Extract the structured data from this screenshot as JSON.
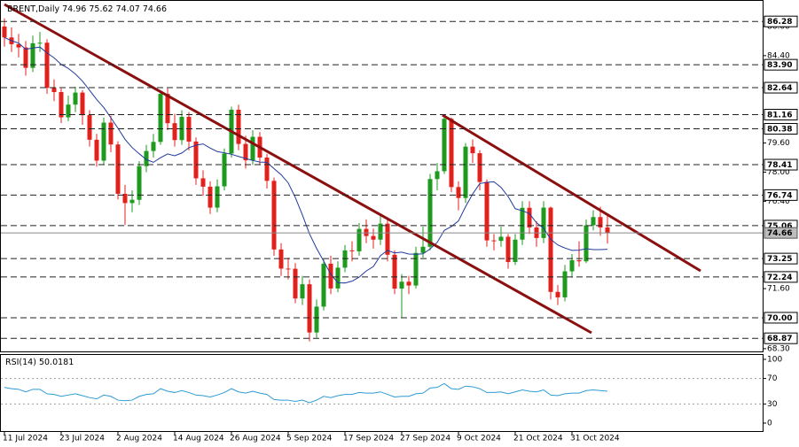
{
  "chart_data": [
    {
      "type": "candlestick",
      "title": "BRENT,Daily",
      "categories": [
        "11 Jul 2024",
        null,
        null,
        null,
        null,
        null,
        null,
        null,
        "23 Jul 2024",
        null,
        null,
        null,
        null,
        null,
        null,
        null,
        "2 Aug 2024",
        null,
        null,
        null,
        null,
        null,
        null,
        null,
        "14 Aug 2024",
        null,
        null,
        null,
        null,
        null,
        null,
        null,
        "26 Aug 2024",
        null,
        null,
        null,
        null,
        null,
        null,
        null,
        "5 Sep 2024",
        null,
        null,
        null,
        null,
        null,
        null,
        null,
        "17 Sep 2024",
        null,
        null,
        null,
        null,
        null,
        null,
        null,
        "27 Sep 2024",
        null,
        null,
        null,
        null,
        null,
        null,
        null,
        "9 Oct 2024",
        null,
        null,
        null,
        null,
        null,
        null,
        null,
        "21 Oct 2024",
        null,
        null,
        null,
        null,
        null,
        null,
        null,
        "31 Oct 2024",
        null,
        null,
        null,
        null,
        null
      ],
      "open": [
        86.0,
        85.4,
        85.03,
        84.85,
        83.73,
        85.08,
        85.11,
        82.63,
        82.4,
        81.01,
        81.71,
        82.37,
        81.13,
        79.78,
        78.63,
        80.72,
        79.52,
        76.81,
        76.3,
        76.48,
        78.33,
        79.16,
        79.66,
        82.3,
        80.69,
        79.76,
        81.04,
        79.68,
        77.66,
        77.2,
        76.05,
        77.22,
        79.02,
        81.43,
        79.55,
        78.65,
        79.94,
        78.8,
        77.52,
        73.75,
        72.7,
        72.69,
        71.06,
        71.84,
        69.19,
        70.61,
        72.97,
        71.61,
        72.75,
        73.7,
        73.65,
        74.88,
        74.49,
        74.29,
        75.17,
        73.46,
        71.6,
        71.98,
        71.77,
        73.56,
        73.9,
        77.62,
        78.05,
        80.93,
        77.18,
        76.58,
        79.4,
        79.04,
        77.46,
        74.25,
        74.22,
        74.45,
        73.06,
        74.29,
        76.04,
        74.96,
        74.38,
        76.05,
        71.42,
        71.12,
        72.55,
        73.16,
        73.1,
        75.08,
        75.53,
        74.96
      ],
      "high": [
        86.45,
        85.95,
        85.6,
        85.2,
        85.5,
        85.7,
        85.3,
        83.1,
        82.6,
        82.2,
        82.7,
        82.5,
        81.4,
        80.1,
        81.0,
        81.1,
        79.7,
        77.3,
        77.0,
        78.6,
        79.5,
        80.1,
        82.5,
        82.6,
        81.2,
        81.4,
        81.3,
        79.9,
        78.1,
        77.5,
        77.6,
        79.3,
        81.6,
        81.7,
        80.0,
        80.3,
        80.2,
        79.0,
        77.7,
        74.1,
        73.3,
        73.0,
        72.3,
        72.1,
        71.0,
        73.2,
        73.4,
        73.1,
        74.0,
        74.2,
        75.2,
        75.4,
        74.9,
        75.6,
        75.4,
        73.7,
        72.4,
        72.3,
        73.9,
        75.0,
        77.9,
        78.5,
        81.16,
        81.0,
        77.5,
        79.6,
        79.8,
        79.2,
        77.6,
        74.6,
        75.0,
        74.6,
        74.6,
        76.4,
        76.4,
        75.3,
        76.4,
        76.1,
        71.8,
        72.9,
        73.5,
        74.2,
        75.4,
        75.9,
        76.1,
        75.62
      ],
      "low": [
        84.9,
        84.6,
        84.3,
        83.3,
        83.5,
        84.6,
        82.3,
        81.9,
        80.7,
        80.8,
        81.3,
        80.6,
        79.4,
        78.3,
        78.4,
        79.1,
        76.5,
        75.1,
        75.8,
        76.2,
        78.0,
        78.8,
        79.5,
        80.3,
        79.4,
        79.5,
        79.2,
        77.3,
        76.7,
        75.7,
        75.8,
        77.0,
        78.8,
        79.2,
        78.2,
        78.4,
        78.4,
        77.1,
        73.4,
        72.3,
        72.1,
        70.8,
        70.7,
        68.7,
        68.9,
        70.4,
        71.3,
        71.4,
        72.5,
        73.1,
        73.4,
        74.1,
        73.8,
        74.0,
        73.1,
        71.3,
        70.0,
        71.3,
        71.6,
        73.3,
        73.7,
        77.0,
        77.9,
        76.9,
        75.9,
        76.3,
        78.5,
        77.0,
        73.9,
        73.7,
        73.9,
        72.7,
        72.9,
        74.0,
        74.6,
        73.9,
        74.1,
        71.0,
        70.7,
        70.9,
        72.2,
        72.8,
        73.0,
        74.8,
        74.5,
        74.07
      ],
      "close": [
        85.4,
        85.03,
        84.85,
        83.73,
        85.08,
        85.11,
        82.63,
        82.4,
        81.01,
        81.71,
        82.37,
        81.13,
        79.78,
        78.63,
        80.72,
        79.52,
        76.81,
        76.3,
        76.48,
        78.33,
        79.16,
        79.66,
        82.3,
        80.69,
        79.76,
        81.04,
        79.68,
        77.66,
        77.2,
        76.05,
        77.22,
        79.02,
        81.43,
        79.55,
        78.65,
        79.94,
        78.8,
        77.52,
        73.75,
        72.7,
        72.69,
        71.06,
        71.84,
        69.19,
        70.61,
        72.97,
        71.61,
        72.75,
        73.7,
        73.65,
        74.88,
        74.49,
        74.29,
        75.17,
        73.46,
        71.6,
        71.98,
        71.77,
        73.56,
        73.9,
        77.62,
        78.05,
        80.93,
        77.18,
        76.58,
        79.4,
        79.04,
        77.46,
        74.25,
        74.22,
        74.45,
        73.06,
        74.29,
        76.04,
        74.96,
        74.38,
        76.05,
        71.42,
        71.12,
        72.55,
        73.16,
        73.1,
        75.08,
        75.53,
        74.96,
        74.66
      ],
      "ma": {
        "color": "#1f3a9e",
        "values": [
          85.4,
          85.22,
          85.09,
          84.75,
          84.82,
          84.87,
          84.55,
          84.28,
          83.92,
          83.7,
          83.39,
          83.0,
          82.5,
          81.99,
          81.55,
          80.99,
          80.41,
          79.8,
          79.35,
          79.01,
          78.69,
          78.54,
          78.79,
          79.0,
          78.9,
          79.05,
          79.34,
          79.48,
          79.55,
          79.32,
          79.13,
          79.06,
          78.98,
          78.86,
          78.75,
          78.64,
          78.55,
          78.54,
          78.19,
          77.86,
          77.41,
          76.61,
          75.65,
          74.61,
          73.81,
          73.11,
          72.39,
          71.92,
          71.91,
          72.01,
          72.23,
          72.57,
          72.81,
          73.41,
          73.7,
          73.56,
          73.6,
          73.5,
          73.49,
          73.51,
          73.78,
          74.14,
          74.8,
          75.01,
          75.32,
          76.1,
          76.8,
          77.37,
          77.44,
          77.47,
          77.16,
          76.66,
          75.99,
          75.88,
          75.72,
          75.22,
          74.92,
          74.31,
          74.0,
          73.83,
          73.7,
          73.71,
          73.79,
          73.74,
          73.74,
          73.76
        ]
      },
      "up_color": "#1e9a1e",
      "down_color": "#e3211c",
      "ylim": [
        68.15,
        87.36
      ],
      "yticks": [
        {
          "value": 86.0,
          "label": "86.00"
        },
        {
          "value": 84.4,
          "label": "84.40"
        },
        {
          "value": 79.6,
          "label": "79.60"
        },
        {
          "value": 78.0,
          "label": "78.00"
        },
        {
          "value": 76.4,
          "label": "76.40"
        },
        {
          "value": 71.6,
          "label": "71.60"
        },
        {
          "value": 68.3,
          "label": "68.30"
        }
      ],
      "levels": [
        {
          "value": 86.28,
          "label": "86.28"
        },
        {
          "value": 83.9,
          "label": "83.90"
        },
        {
          "value": 82.64,
          "label": "82.64"
        },
        {
          "value": 81.16,
          "label": "81.16"
        },
        {
          "value": 80.38,
          "label": "80.38"
        },
        {
          "value": 78.41,
          "label": "78.41"
        },
        {
          "value": 76.74,
          "label": "76.74"
        },
        {
          "value": 75.06,
          "label": "75.06"
        },
        {
          "value": 73.25,
          "label": "73.25"
        },
        {
          "value": 72.24,
          "label": "72.24"
        },
        {
          "value": 70.0,
          "label": "70.00"
        },
        {
          "value": 68.87,
          "label": "68.87"
        }
      ]
    },
    {
      "type": "line",
      "title": "RSI(14)",
      "color": "#2e9bd6",
      "values": [
        56,
        54,
        53,
        49,
        53,
        53,
        46,
        45,
        42,
        44,
        46,
        43,
        40,
        38,
        44,
        42,
        36,
        35,
        36,
        42,
        45,
        46,
        54,
        50,
        48,
        51,
        48,
        44,
        43,
        41,
        44,
        48,
        54,
        49,
        47,
        50,
        47,
        45,
        37,
        36,
        36,
        34,
        36,
        32,
        36,
        42,
        40,
        43,
        45,
        45,
        48,
        47,
        47,
        49,
        45,
        41,
        42,
        42,
        46,
        47,
        55,
        56,
        62,
        54,
        53,
        58,
        57,
        54,
        48,
        48,
        49,
        46,
        49,
        52,
        50,
        49,
        52,
        44,
        43,
        46,
        47,
        47,
        51,
        52,
        51,
        50.0181
      ],
      "ylim": [
        -12.5,
        108.3
      ],
      "yticks": [
        100,
        70,
        30,
        0
      ],
      "levels": [
        70,
        30
      ]
    }
  ]
}
